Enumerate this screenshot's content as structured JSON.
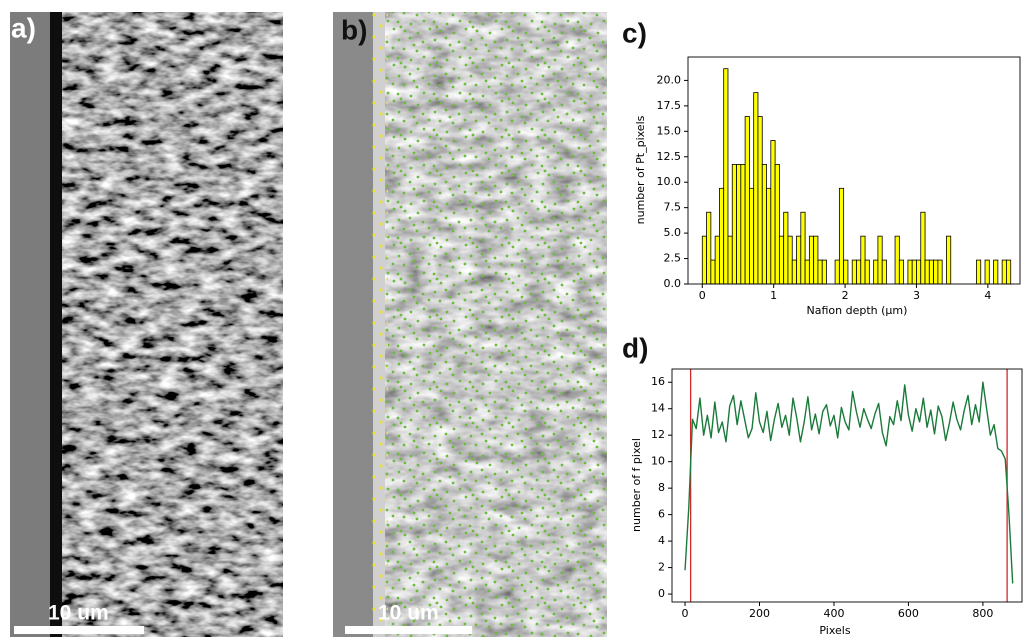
{
  "panel_labels": [
    "a)",
    "b)",
    "c)",
    "d)"
  ],
  "scale_bars": [
    "10 um",
    "10 um"
  ],
  "chart_data": [
    {
      "type": "histogram",
      "xlabel": "Nafion depth (µm)",
      "ylabel": "number of Pt_pixels",
      "color": "#ffff00",
      "edgecolor": "#000000",
      "bins": [
        0,
        0.06,
        0.12,
        0.18,
        0.24,
        0.3,
        0.36,
        0.42,
        0.48,
        0.54,
        0.6,
        0.66,
        0.72,
        0.78,
        0.84,
        0.9,
        0.96,
        1.02,
        1.08,
        1.14,
        1.2,
        1.26,
        1.32,
        1.38,
        1.44,
        1.5,
        1.56,
        1.62,
        1.68,
        1.74,
        1.8,
        1.86,
        1.92,
        1.98,
        2.04,
        2.1,
        2.16,
        2.22,
        2.28,
        2.34,
        2.4,
        2.46,
        2.52,
        2.58,
        2.64,
        2.7,
        2.76,
        2.82,
        2.88,
        2.94,
        3,
        3.06,
        3.12,
        3.18,
        3.24,
        3.3,
        3.36,
        3.42,
        3.48,
        3.54,
        3.6,
        3.66,
        3.72,
        3.78,
        3.84,
        3.9,
        3.96,
        4.02,
        4.08,
        4.14,
        4.2,
        4.26,
        4.32,
        4.38
      ],
      "values": [
        4.7,
        7.05,
        2.35,
        4.7,
        9.4,
        21.15,
        4.7,
        11.75,
        11.75,
        11.75,
        16.45,
        9.4,
        18.8,
        16.45,
        11.75,
        9.4,
        14.1,
        11.75,
        4.7,
        7.05,
        4.7,
        2.35,
        4.7,
        7.05,
        2.35,
        4.7,
        4.7,
        2.35,
        2.35,
        0,
        0,
        2.35,
        9.4,
        2.35,
        0,
        2.35,
        2.35,
        4.7,
        2.35,
        0,
        2.35,
        4.7,
        2.35,
        0,
        0,
        4.7,
        2.35,
        0,
        2.35,
        2.35,
        2.35,
        7.05,
        2.35,
        2.35,
        2.35,
        2.35,
        0,
        4.7,
        0,
        0,
        0,
        0,
        0,
        0,
        2.35,
        0,
        2.35,
        0,
        2.35,
        0,
        2.35,
        2.35,
        0
      ],
      "xlim": [
        -0.2,
        4.45
      ],
      "xticks": [
        0,
        1,
        2,
        3,
        4
      ],
      "ylim": [
        0,
        22.3
      ],
      "yticks": [
        {
          "value": 0,
          "label": "0.0"
        },
        2.5,
        {
          "value": 5,
          "label": "5.0"
        },
        7.5,
        {
          "value": 10,
          "label": "10.0"
        },
        12.5,
        {
          "value": 15,
          "label": "15.0"
        },
        17.5,
        {
          "value": 20,
          "label": "20.0"
        }
      ]
    },
    {
      "type": "line",
      "xlabel": "Pixels",
      "ylabel": "number of  f pixel",
      "color": "#1a7a3a",
      "x": [
        0,
        10,
        20,
        30,
        40,
        50,
        60,
        70,
        80,
        90,
        100,
        110,
        120,
        130,
        140,
        150,
        160,
        170,
        180,
        190,
        200,
        210,
        220,
        230,
        240,
        250,
        260,
        270,
        280,
        290,
        300,
        310,
        320,
        330,
        340,
        350,
        360,
        370,
        380,
        390,
        400,
        410,
        420,
        430,
        440,
        450,
        460,
        470,
        480,
        490,
        500,
        510,
        520,
        530,
        540,
        550,
        560,
        570,
        580,
        590,
        600,
        610,
        620,
        630,
        640,
        650,
        660,
        670,
        680,
        690,
        700,
        710,
        720,
        730,
        740,
        750,
        760,
        770,
        780,
        790,
        800,
        810,
        820,
        830,
        840,
        850,
        860,
        870,
        880
      ],
      "values": [
        1.8,
        6.5,
        13.2,
        12.5,
        14.8,
        12.0,
        13.5,
        11.8,
        14.5,
        12.2,
        13.0,
        11.5,
        14.2,
        15.0,
        12.8,
        14.6,
        13.2,
        11.8,
        12.5,
        15.2,
        13.0,
        12.2,
        13.8,
        11.6,
        13.2,
        14.4,
        12.6,
        13.5,
        12.0,
        14.8,
        13.3,
        11.5,
        13.0,
        14.9,
        12.4,
        13.6,
        12.1,
        13.8,
        14.3,
        12.7,
        13.5,
        11.8,
        14.1,
        13.0,
        12.4,
        15.3,
        13.8,
        12.6,
        14.0,
        13.2,
        12.5,
        13.6,
        14.4,
        12.2,
        11.2,
        13.4,
        12.8,
        14.6,
        13.1,
        15.8,
        13.5,
        12.3,
        14.0,
        13.0,
        14.8,
        12.6,
        13.9,
        12.1,
        14.2,
        13.4,
        11.6,
        12.9,
        14.5,
        13.2,
        12.4,
        13.9,
        15.0,
        12.8,
        14.3,
        13.0,
        16.0,
        14.0,
        12.0,
        12.8,
        11.0,
        10.8,
        10.2,
        6.0,
        0.8
      ],
      "vlines": [
        15,
        865
      ],
      "vline_color": "#d62728",
      "xlim": [
        -35,
        905
      ],
      "xticks": [
        0,
        200,
        400,
        600,
        800
      ],
      "ylim": [
        -0.6,
        17
      ],
      "yticks": [
        0,
        2,
        4,
        6,
        8,
        10,
        12,
        14,
        16
      ]
    }
  ]
}
